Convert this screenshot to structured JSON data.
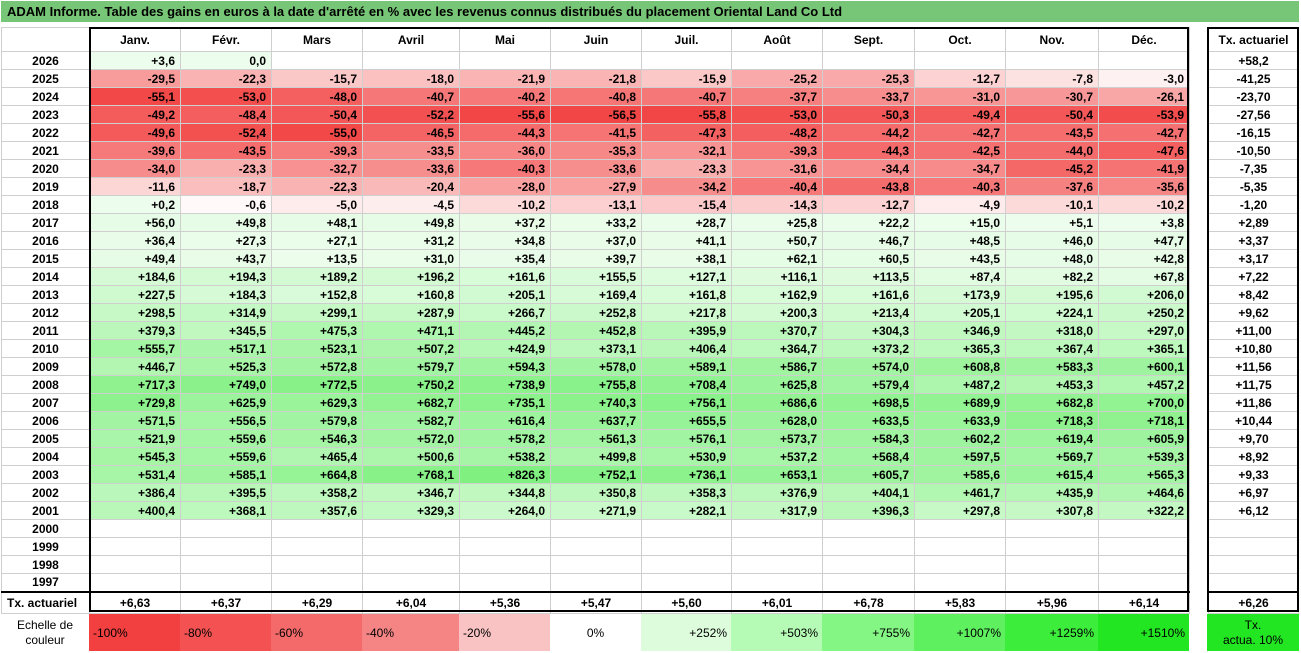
{
  "title": "ADAM Informe. Table des gains en euros à la date d'arrêté en % avec les revenus connus distribués du placement Oriental Land Co Ltd",
  "months": [
    "Janv.",
    "Févr.",
    "Mars",
    "Avril",
    "Mai",
    "Juin",
    "Juil.",
    "Août",
    "Sept.",
    "Oct.",
    "Nov.",
    "Déc."
  ],
  "rate_header": "Tx. actuariel",
  "rows": [
    {
      "year": "2026",
      "values": [
        "+3,6",
        "0,0",
        "",
        "",
        "",
        "",
        "",
        "",
        "",
        "",
        "",
        ""
      ],
      "rate": "+58,2"
    },
    {
      "year": "2025",
      "values": [
        "-29,5",
        "-22,3",
        "-15,7",
        "-18,0",
        "-21,9",
        "-21,8",
        "-15,9",
        "-25,2",
        "-25,3",
        "-12,7",
        "-7,8",
        "-3,0"
      ],
      "rate": "-41,25"
    },
    {
      "year": "2024",
      "values": [
        "-55,1",
        "-53,0",
        "-48,0",
        "-40,7",
        "-40,2",
        "-40,8",
        "-40,7",
        "-37,7",
        "-33,7",
        "-31,0",
        "-30,7",
        "-26,1"
      ],
      "rate": "-23,70"
    },
    {
      "year": "2023",
      "values": [
        "-49,2",
        "-48,4",
        "-50,4",
        "-52,2",
        "-55,6",
        "-56,5",
        "-55,8",
        "-53,0",
        "-50,3",
        "-49,4",
        "-50,4",
        "-53,9"
      ],
      "rate": "-27,56"
    },
    {
      "year": "2022",
      "values": [
        "-49,6",
        "-52,4",
        "-55,0",
        "-46,5",
        "-44,3",
        "-41,5",
        "-47,3",
        "-48,2",
        "-44,2",
        "-42,7",
        "-43,5",
        "-42,7"
      ],
      "rate": "-16,15"
    },
    {
      "year": "2021",
      "values": [
        "-39,6",
        "-43,5",
        "-39,3",
        "-33,5",
        "-36,0",
        "-35,3",
        "-32,1",
        "-39,3",
        "-44,3",
        "-42,5",
        "-44,0",
        "-47,6"
      ],
      "rate": "-10,50"
    },
    {
      "year": "2020",
      "values": [
        "-34,0",
        "-23,3",
        "-32,7",
        "-33,6",
        "-40,3",
        "-33,6",
        "-23,3",
        "-31,6",
        "-34,4",
        "-34,7",
        "-45,2",
        "-41,9"
      ],
      "rate": "-7,35"
    },
    {
      "year": "2019",
      "values": [
        "-11,6",
        "-18,7",
        "-22,3",
        "-20,4",
        "-28,0",
        "-27,9",
        "-34,2",
        "-40,4",
        "-43,8",
        "-40,3",
        "-37,6",
        "-35,6"
      ],
      "rate": "-5,35"
    },
    {
      "year": "2018",
      "values": [
        "+0,2",
        "-0,6",
        "-5,0",
        "-4,5",
        "-10,2",
        "-13,1",
        "-15,4",
        "-14,3",
        "-12,7",
        "-4,9",
        "-10,1",
        "-10,2"
      ],
      "rate": "-1,20"
    },
    {
      "year": "2017",
      "values": [
        "+56,0",
        "+49,8",
        "+48,1",
        "+49,8",
        "+37,2",
        "+33,2",
        "+28,7",
        "+25,8",
        "+22,2",
        "+15,0",
        "+5,1",
        "+3,8"
      ],
      "rate": "+2,89"
    },
    {
      "year": "2016",
      "values": [
        "+36,4",
        "+27,3",
        "+27,1",
        "+31,2",
        "+34,8",
        "+37,0",
        "+41,1",
        "+50,7",
        "+46,7",
        "+48,5",
        "+46,0",
        "+47,7"
      ],
      "rate": "+3,37"
    },
    {
      "year": "2015",
      "values": [
        "+49,4",
        "+43,7",
        "+13,5",
        "+31,0",
        "+35,4",
        "+39,7",
        "+38,1",
        "+62,1",
        "+60,5",
        "+43,5",
        "+48,0",
        "+42,8"
      ],
      "rate": "+3,17"
    },
    {
      "year": "2014",
      "values": [
        "+184,6",
        "+194,3",
        "+189,2",
        "+196,2",
        "+161,6",
        "+155,5",
        "+127,1",
        "+116,1",
        "+113,5",
        "+87,4",
        "+82,2",
        "+67,8"
      ],
      "rate": "+7,22"
    },
    {
      "year": "2013",
      "values": [
        "+227,5",
        "+184,3",
        "+152,8",
        "+160,8",
        "+205,1",
        "+169,4",
        "+161,8",
        "+162,9",
        "+161,6",
        "+173,9",
        "+195,6",
        "+206,0"
      ],
      "rate": "+8,42"
    },
    {
      "year": "2012",
      "values": [
        "+298,5",
        "+314,9",
        "+299,1",
        "+287,9",
        "+266,7",
        "+252,8",
        "+217,8",
        "+200,3",
        "+213,4",
        "+205,1",
        "+224,1",
        "+250,2"
      ],
      "rate": "+9,62"
    },
    {
      "year": "2011",
      "values": [
        "+379,3",
        "+345,5",
        "+475,3",
        "+471,1",
        "+445,2",
        "+452,8",
        "+395,9",
        "+370,7",
        "+304,3",
        "+346,9",
        "+318,0",
        "+297,0"
      ],
      "rate": "+11,00"
    },
    {
      "year": "2010",
      "values": [
        "+555,7",
        "+517,1",
        "+523,1",
        "+507,2",
        "+424,9",
        "+373,1",
        "+406,4",
        "+364,7",
        "+373,2",
        "+365,3",
        "+367,4",
        "+365,1"
      ],
      "rate": "+10,80"
    },
    {
      "year": "2009",
      "values": [
        "+446,7",
        "+525,3",
        "+572,8",
        "+579,7",
        "+594,3",
        "+578,0",
        "+589,1",
        "+586,7",
        "+574,0",
        "+608,8",
        "+583,3",
        "+600,1"
      ],
      "rate": "+11,56"
    },
    {
      "year": "2008",
      "values": [
        "+717,3",
        "+749,0",
        "+772,5",
        "+750,2",
        "+738,9",
        "+755,8",
        "+708,4",
        "+625,8",
        "+579,4",
        "+487,2",
        "+453,3",
        "+457,2"
      ],
      "rate": "+11,75"
    },
    {
      "year": "2007",
      "values": [
        "+729,8",
        "+625,9",
        "+629,3",
        "+682,7",
        "+735,1",
        "+740,3",
        "+756,1",
        "+686,6",
        "+698,5",
        "+689,9",
        "+682,8",
        "+700,0"
      ],
      "rate": "+11,86"
    },
    {
      "year": "2006",
      "values": [
        "+571,5",
        "+556,5",
        "+579,8",
        "+582,7",
        "+616,4",
        "+637,7",
        "+655,5",
        "+628,0",
        "+633,5",
        "+633,9",
        "+718,3",
        "+718,1"
      ],
      "rate": "+10,44"
    },
    {
      "year": "2005",
      "values": [
        "+521,9",
        "+559,6",
        "+546,3",
        "+572,0",
        "+578,2",
        "+561,3",
        "+576,1",
        "+573,7",
        "+584,3",
        "+602,2",
        "+619,4",
        "+605,9"
      ],
      "rate": "+9,70"
    },
    {
      "year": "2004",
      "values": [
        "+545,3",
        "+559,6",
        "+465,4",
        "+500,6",
        "+538,2",
        "+499,8",
        "+530,9",
        "+537,2",
        "+568,4",
        "+597,5",
        "+569,7",
        "+539,3"
      ],
      "rate": "+8,92"
    },
    {
      "year": "2003",
      "values": [
        "+531,4",
        "+585,1",
        "+664,8",
        "+768,1",
        "+826,3",
        "+752,1",
        "+736,1",
        "+653,1",
        "+605,7",
        "+585,6",
        "+615,4",
        "+565,3"
      ],
      "rate": "+9,33"
    },
    {
      "year": "2002",
      "values": [
        "+386,4",
        "+395,5",
        "+358,2",
        "+346,7",
        "+344,8",
        "+350,8",
        "+358,3",
        "+376,9",
        "+404,1",
        "+461,7",
        "+435,9",
        "+464,6"
      ],
      "rate": "+6,97"
    },
    {
      "year": "2001",
      "values": [
        "+400,4",
        "+368,1",
        "+357,6",
        "+329,3",
        "+264,0",
        "+271,9",
        "+282,1",
        "+317,9",
        "+396,3",
        "+297,8",
        "+307,8",
        "+322,2"
      ],
      "rate": "+6,12"
    },
    {
      "year": "2000",
      "values": [
        "",
        "",
        "",
        "",
        "",
        "",
        "",
        "",
        "",
        "",
        "",
        ""
      ],
      "rate": ""
    },
    {
      "year": "1999",
      "values": [
        "",
        "",
        "",
        "",
        "",
        "",
        "",
        "",
        "",
        "",
        "",
        ""
      ],
      "rate": ""
    },
    {
      "year": "1998",
      "values": [
        "",
        "",
        "",
        "",
        "",
        "",
        "",
        "",
        "",
        "",
        "",
        ""
      ],
      "rate": ""
    },
    {
      "year": "1997",
      "values": [
        "",
        "",
        "",
        "",
        "",
        "",
        "",
        "",
        "",
        "",
        "",
        ""
      ],
      "rate": ""
    }
  ],
  "footer": {
    "label": "Tx. actuariel",
    "values": [
      "+6,63",
      "+6,37",
      "+6,29",
      "+6,04",
      "+5,36",
      "+5,47",
      "+5,60",
      "+6,01",
      "+6,78",
      "+5,83",
      "+5,96",
      "+6,14"
    ],
    "rate": "+6,26"
  },
  "scale": {
    "label_line1": "Echelle de",
    "label_line2": "couleur",
    "items": [
      {
        "text": "-100%",
        "color": "#f23f3f",
        "align": "left"
      },
      {
        "text": "-80%",
        "color": "#f45252",
        "align": "left"
      },
      {
        "text": "-60%",
        "color": "#f46a6a",
        "align": "left"
      },
      {
        "text": "-40%",
        "color": "#f58585",
        "align": "left"
      },
      {
        "text": "-20%",
        "color": "#f9c3c3",
        "align": "left"
      },
      {
        "text": "0%",
        "color": "#ffffff",
        "align": "center"
      },
      {
        "text": "+252%",
        "color": "#dcfcdc",
        "align": "right"
      },
      {
        "text": "+503%",
        "color": "#b5fbb5",
        "align": "right"
      },
      {
        "text": "+755%",
        "color": "#84f684",
        "align": "right"
      },
      {
        "text": "+1007%",
        "color": "#5ef05e",
        "align": "right"
      },
      {
        "text": "+1259%",
        "color": "#3ced3c",
        "align": "right"
      },
      {
        "text": "+1510%",
        "color": "#22e622",
        "align": "right"
      }
    ],
    "rate_line1": "Tx.",
    "rate_line2": "actua. 10%",
    "rate_color": "#22e622"
  },
  "colors": {
    "title_bg": "#77c677",
    "neg_max": "#ee3333",
    "pos_max": "#22e622"
  }
}
